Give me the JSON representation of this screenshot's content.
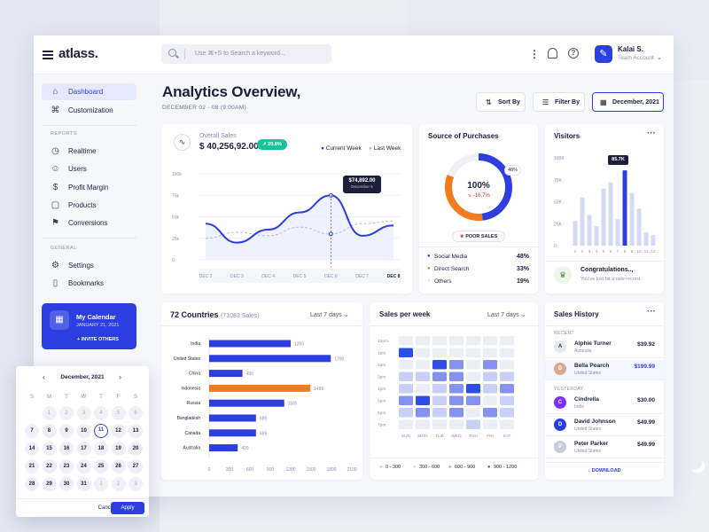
{
  "app": {
    "logo": "atlass.",
    "search_placeholder": "Use ⌘+S to Search a keyword...",
    "user": {
      "name": "Kalai S.",
      "role": "Team Account"
    }
  },
  "sidebar": {
    "items": [
      {
        "label": "Dashboard",
        "icon": "home-icon",
        "active": true
      },
      {
        "label": "Customization",
        "icon": "command-icon"
      }
    ],
    "reports_label": "REPORTS",
    "reports": [
      {
        "label": "Realtime",
        "icon": "clock-icon"
      },
      {
        "label": "Users",
        "icon": "user-icon"
      },
      {
        "label": "Profit Margin",
        "icon": "dollar-icon"
      },
      {
        "label": "Products",
        "icon": "box-icon"
      },
      {
        "label": "Conversions",
        "icon": "flag-icon"
      }
    ],
    "general_label": "GENERAL",
    "general": [
      {
        "label": "Settings",
        "icon": "gear-icon"
      },
      {
        "label": "Bookmarks",
        "icon": "bookmark-icon"
      }
    ],
    "my_calendar": {
      "title": "My Calendar",
      "date": "JANUARY 21, 2021",
      "invite": "+ INVITE OTHERS"
    }
  },
  "page": {
    "title": "Analytics Overview,",
    "subtitle": "DECEMBER 02 - 08 (9:00AM)",
    "sort_label": "Sort By",
    "filter_label": "Filter By",
    "date_label": "December, 2021"
  },
  "overall_sales": {
    "label": "Overall Sales",
    "value": "$ 40,256,92.00",
    "change": "↗ 20.8%",
    "legend_current": "Current Week",
    "legend_last": "Last Week",
    "tooltip_value": "$74,892.00",
    "tooltip_date": "December 6"
  },
  "source": {
    "title": "Source of Purchases",
    "percent": "100%",
    "change": "↘ -16.7%",
    "slice_label": "48%",
    "badge": "POOR SALES",
    "items": [
      {
        "label": "Social Media",
        "value": "48%",
        "color": "#2c3ee0"
      },
      {
        "label": "Direct Search",
        "value": "33%",
        "color": "#f27b1b"
      },
      {
        "label": "Others",
        "value": "19%",
        "color": "#e1e3ec"
      }
    ]
  },
  "visitors": {
    "title": "Visitors",
    "tooltip": "85.7K",
    "congrats_title": "Congratulations..,",
    "congrats_text": "You've just hit a new record."
  },
  "countries": {
    "title": "72 Countries",
    "subtitle": "(71083 Sales)",
    "period": "Last 7 days"
  },
  "sales_week": {
    "title": "Sales per week",
    "period": "Last 7 days",
    "legend": [
      "0 - 300",
      "300 - 600",
      "600 - 900",
      "900 - 1200"
    ]
  },
  "history": {
    "title": "Sales History",
    "recent_label": "RECENT",
    "yesterday_label": "YESTERDAY",
    "download": "DOWNLOAD",
    "recent": [
      {
        "name": "Alphie Turner",
        "country": "Australia",
        "amount": "$39.92",
        "initial": "A",
        "color": "#e6e8f0",
        "tc": "#333"
      },
      {
        "name": "Bella Poarch",
        "country": "United States",
        "amount": "$199.99",
        "initial": "B",
        "color": "#d9a88a",
        "tc": "#fff",
        "highlight": true
      }
    ],
    "yesterday": [
      {
        "name": "Cindrella",
        "country": "India",
        "amount": "$30.00",
        "initial": "C",
        "color": "#7b2ff7",
        "tc": "#fff"
      },
      {
        "name": "David Johnson",
        "country": "United States",
        "amount": "$49.99",
        "initial": "D",
        "color": "#2c3ee0",
        "tc": "#fff"
      },
      {
        "name": "Peter Parker",
        "country": "United States",
        "amount": "$49.99",
        "initial": "P",
        "color": "#c9cbd6",
        "tc": "#fff"
      }
    ]
  },
  "calendar": {
    "month": "December, 2021",
    "dow": [
      "S",
      "M",
      "T",
      "W",
      "T",
      "F",
      "S"
    ],
    "cancel": "Cancel",
    "apply": "Apply",
    "days": [
      [
        "1",
        "2",
        "3",
        "4",
        "5",
        "6"
      ],
      [
        "7",
        "8",
        "9",
        "10",
        "11",
        "12",
        "13"
      ],
      [
        "14",
        "15",
        "16",
        "17",
        "18",
        "19",
        "20"
      ],
      [
        "21",
        "22",
        "23",
        "24",
        "25",
        "26",
        "27"
      ],
      [
        "28",
        "29",
        "30",
        "31",
        "1",
        "2",
        "3"
      ]
    ],
    "selected": "11"
  },
  "chart_data": [
    {
      "type": "line",
      "title": "Overall Sales",
      "x": [
        "DEC 2",
        "DEC 3",
        "DEC 4",
        "DEC 5",
        "DEC 6",
        "DEC 7",
        "DEC 8"
      ],
      "yticks": [
        "0",
        "25k",
        "50k",
        "75k",
        "100k"
      ],
      "ylim": [
        0,
        100000
      ],
      "series": [
        {
          "name": "Current Week",
          "values": [
            42000,
            20000,
            35000,
            55000,
            74892,
            28000,
            40000
          ],
          "color": "#2c3ee0"
        },
        {
          "name": "Last Week",
          "values": [
            25000,
            32000,
            28000,
            38000,
            30000,
            42000,
            45000
          ],
          "color": "#b8bccc"
        }
      ]
    },
    {
      "type": "pie",
      "title": "Source of Purchases",
      "categories": [
        "Social Media",
        "Direct Search",
        "Others"
      ],
      "values": [
        48,
        33,
        19
      ]
    },
    {
      "type": "bar",
      "title": "Visitors",
      "yticks": [
        "0",
        "25K",
        "50K",
        "75K",
        "100K"
      ],
      "ylim": [
        0,
        100000
      ],
      "categories": [
        "1",
        "2",
        "3",
        "4",
        "5",
        "6",
        "7",
        "8",
        "9",
        "10",
        "11",
        "12"
      ],
      "values": [
        28000,
        55000,
        35000,
        22000,
        65000,
        72000,
        30000,
        85700,
        60000,
        42000,
        15000,
        12000
      ],
      "highlight_index": 7
    },
    {
      "type": "bar",
      "orientation": "horizontal",
      "title": "72 Countries",
      "categories": [
        "India",
        "United States",
        "China",
        "Indonesia",
        "Russia",
        "Bangladesh",
        "Canada",
        "Australia"
      ],
      "values": [
        1200,
        1790,
        490,
        1489,
        1105,
        689,
        689,
        420
      ],
      "highlight": "Indonesia",
      "xticks": [
        "0",
        "300",
        "600",
        "900",
        "1200",
        "1500",
        "1800",
        "2100"
      ],
      "xlim": [
        0,
        2100
      ]
    },
    {
      "type": "heatmap",
      "title": "Sales per week",
      "x": [
        "SUN",
        "MON",
        "TUE",
        "WED",
        "THU",
        "FRI",
        "SAT"
      ],
      "y": [
        "12pm",
        "1pm",
        "2pm",
        "3pm",
        "4pm",
        "5pm",
        "6pm",
        "7pm"
      ],
      "values": [
        [
          0,
          0,
          0,
          0,
          0,
          0,
          0
        ],
        [
          3,
          0,
          0,
          0,
          0,
          0,
          0
        ],
        [
          0,
          0,
          3,
          2,
          0,
          2,
          0
        ],
        [
          1,
          1,
          2,
          2,
          0,
          1,
          1
        ],
        [
          1,
          0,
          1,
          2,
          3,
          1,
          2
        ],
        [
          2,
          3,
          1,
          2,
          2,
          0,
          1
        ],
        [
          1,
          2,
          1,
          2,
          0,
          2,
          1
        ],
        [
          0,
          0,
          0,
          0,
          1,
          0,
          0
        ]
      ]
    }
  ]
}
